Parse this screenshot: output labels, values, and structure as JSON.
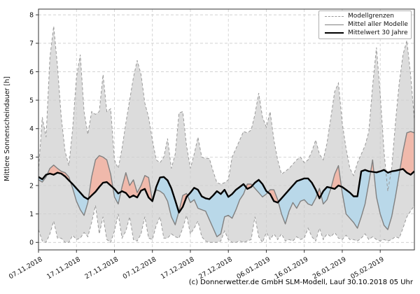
{
  "figure": {
    "ylabel": "Mittlere Sonnenscheindauer [h]",
    "caption": "(c) Donnerwetter.de GmbH SLM-Modell, Lauf 30.10.2018 05 Uhr",
    "legend": [
      "Modellgrenzen",
      "Mittel aller Modelle",
      "Mittelwert 30 Jahre"
    ]
  },
  "chart_data": {
    "type": "line",
    "title": "",
    "xlabel": "",
    "ylabel": "Mittlere Sonnenscheindauer [h]",
    "ylim": [
      0,
      8
    ],
    "y_ticks": [
      0,
      1,
      2,
      3,
      4,
      5,
      6,
      7,
      8
    ],
    "grid": true,
    "legend_position": "top-right",
    "x_unit": "days since 07.11.2018",
    "x_ticks": {
      "days": [
        0,
        10,
        20,
        30,
        40,
        50,
        60,
        70,
        80,
        90
      ],
      "labels": [
        "07.11.2018",
        "17.11.2018",
        "27.11.2018",
        "07.12.2018",
        "17.12.2018",
        "27.12.2018",
        "06.01.2019",
        "16.01.2019",
        "26.01.2019",
        "05.02.2019"
      ]
    },
    "colors": {
      "band_fill": "#dcdcdc",
      "band_edge": "#999999",
      "model_mean": "#808080",
      "climate_mean": "#000000",
      "above_fill": "#f0b9ab",
      "below_fill": "#b9d8e9",
      "grid": "#cccccc",
      "frame": "#333333"
    },
    "series": [
      {
        "name": "Modellgrenzen (oben)",
        "role": "upper",
        "style": "dashed",
        "values": [
          2.5,
          4.4,
          3.7,
          6.5,
          7.6,
          6.2,
          4.4,
          3.2,
          2.7,
          4.0,
          5.8,
          6.6,
          4.6,
          3.8,
          4.6,
          4.5,
          4.6,
          5.9,
          4.6,
          4.7,
          2.9,
          2.6,
          3.3,
          4.2,
          5.0,
          5.8,
          6.4,
          5.9,
          4.9,
          4.4,
          3.6,
          2.9,
          2.8,
          3.0,
          3.65,
          2.6,
          3.1,
          4.55,
          4.6,
          3.4,
          2.6,
          3.1,
          3.7,
          3.0,
          2.95,
          2.95,
          2.5,
          2.1,
          2.05,
          2.1,
          2.2,
          3.0,
          3.3,
          3.6,
          3.9,
          3.85,
          3.95,
          4.5,
          5.25,
          4.4,
          4.05,
          4.6,
          3.6,
          2.9,
          2.4,
          2.5,
          2.6,
          2.75,
          2.9,
          3.0,
          2.8,
          2.9,
          3.2,
          3.6,
          3.1,
          2.9,
          3.5,
          4.4,
          5.3,
          5.6,
          4.2,
          3.3,
          2.6,
          2.35,
          2.8,
          3.1,
          3.4,
          3.9,
          5.5,
          6.85,
          5.2,
          3.2,
          1.8,
          2.6,
          4.2,
          5.6,
          6.6,
          7.1,
          5.9,
          4.3
        ]
      },
      {
        "name": "Modellgrenzen (unten)",
        "role": "lower",
        "style": "dashed",
        "values": [
          0.45,
          0.05,
          0.0,
          0.3,
          0.75,
          0.15,
          0.15,
          0.0,
          0.0,
          0.25,
          0.1,
          0.15,
          0.35,
          0.2,
          0.7,
          1.3,
          0.3,
          0.9,
          0.1,
          0.0,
          0.4,
          1.0,
          0.15,
          0.4,
          0.9,
          0.1,
          0.05,
          0.3,
          0.9,
          0.15,
          0.1,
          0.6,
          0.9,
          0.15,
          0.15,
          0.3,
          0.2,
          0.15,
          0.5,
          0.95,
          0.3,
          0.5,
          0.75,
          0.2,
          0.05,
          0.0,
          0.0,
          0.0,
          0.05,
          0.4,
          0.1,
          0.0,
          0.0,
          0.05,
          0.0,
          0.05,
          0.1,
          0.9,
          0.2,
          0.0,
          0.35,
          0.1,
          0.3,
          0.1,
          0.3,
          0.05,
          0.1,
          0.05,
          0.2,
          0.1,
          0.15,
          0.5,
          0.2,
          0.05,
          0.5,
          0.1,
          0.3,
          0.2,
          0.35,
          0.15,
          0.1,
          0.25,
          0.1,
          0.1,
          0.05,
          0.15,
          0.3,
          0.1,
          0.2,
          0.1,
          0.05,
          0.1,
          0.05,
          0.1,
          0.2,
          0.15,
          0.5,
          0.9,
          1.1,
          1.3
        ]
      },
      {
        "name": "Mittel aller Modelle",
        "role": "model_mean",
        "style": "solid-gray",
        "values": [
          2.2,
          2.12,
          2.3,
          2.6,
          2.72,
          2.6,
          2.5,
          2.45,
          2.3,
          1.9,
          1.45,
          1.15,
          0.95,
          1.4,
          2.3,
          2.9,
          3.05,
          3.0,
          2.9,
          2.4,
          1.6,
          1.35,
          1.95,
          2.45,
          2.0,
          2.2,
          1.75,
          2.0,
          2.35,
          2.28,
          1.45,
          1.85,
          1.8,
          1.7,
          1.45,
          0.9,
          0.62,
          1.1,
          1.65,
          1.72,
          1.4,
          1.5,
          1.2,
          1.15,
          1.1,
          0.8,
          0.5,
          0.2,
          0.3,
          0.9,
          0.95,
          0.85,
          1.15,
          1.5,
          1.7,
          2.05,
          2.05,
          1.9,
          1.75,
          1.6,
          1.7,
          1.85,
          1.85,
          1.5,
          1.0,
          0.65,
          1.1,
          1.4,
          1.2,
          1.45,
          1.5,
          1.35,
          1.3,
          1.55,
          1.9,
          1.35,
          1.5,
          1.9,
          2.4,
          2.7,
          1.75,
          1.0,
          0.85,
          0.7,
          0.5,
          0.9,
          1.35,
          2.1,
          2.9,
          1.6,
          1.0,
          0.6,
          0.45,
          0.9,
          1.6,
          2.4,
          3.2,
          3.85,
          3.9,
          3.85
        ]
      },
      {
        "name": "Mittelwert 30 Jahre",
        "role": "climate_mean",
        "style": "solid-black",
        "values": [
          2.3,
          2.22,
          2.38,
          2.42,
          2.38,
          2.45,
          2.42,
          2.32,
          2.18,
          2.05,
          1.9,
          1.75,
          1.6,
          1.52,
          1.65,
          1.78,
          1.95,
          2.1,
          2.12,
          2.0,
          1.88,
          1.72,
          1.8,
          1.74,
          1.58,
          1.65,
          1.58,
          1.82,
          1.88,
          1.58,
          1.45,
          1.95,
          2.28,
          2.3,
          2.18,
          1.9,
          1.48,
          1.05,
          1.25,
          1.6,
          1.75,
          1.92,
          1.85,
          1.62,
          1.55,
          1.52,
          1.65,
          1.8,
          1.7,
          1.85,
          1.6,
          1.7,
          1.85,
          1.95,
          2.05,
          1.88,
          1.95,
          2.1,
          2.2,
          2.05,
          1.8,
          1.7,
          1.45,
          1.4,
          1.55,
          1.7,
          1.85,
          2.0,
          2.15,
          2.2,
          2.25,
          2.25,
          2.1,
          1.85,
          1.55,
          1.8,
          1.95,
          1.92,
          1.88,
          2.0,
          1.95,
          1.85,
          1.75,
          1.62,
          1.62,
          2.5,
          2.55,
          2.5,
          2.48,
          2.46,
          2.5,
          2.55,
          2.45,
          2.5,
          2.52,
          2.55,
          2.58,
          2.45,
          2.38,
          2.5
        ]
      }
    ]
  }
}
